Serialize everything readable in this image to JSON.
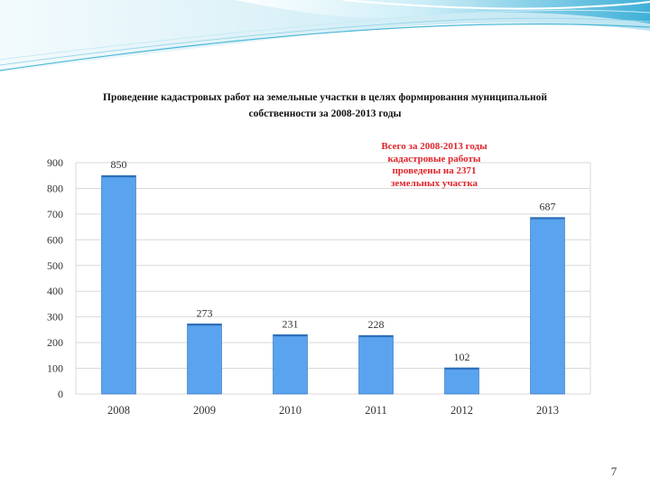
{
  "slide": {
    "title_lines": [
      "Проведение кадастровых работ на земельные участки в целях формирования муниципальной",
      "собственности за 2008-2013 годы"
    ],
    "note_lines": [
      "Всего за 2008-2013 годы",
      "кадастровые работы",
      "проведены на 2371",
      "земельных участка"
    ],
    "page_number": "7",
    "colors": {
      "bar": "#5aa3ef",
      "bar_edge": "#2f6fb7",
      "note": "#e0242a",
      "wave": "#4cb7d8"
    }
  },
  "chart_data": {
    "type": "bar",
    "categories": [
      "2008",
      "2009",
      "2010",
      "2011",
      "2012",
      "2013"
    ],
    "values": [
      850,
      273,
      231,
      228,
      102,
      687
    ],
    "data_labels": [
      "850",
      "273",
      "231",
      "228",
      "102",
      "687"
    ],
    "title": "Проведение кадастровых работ на земельные участки в целях формирования муниципальной собственности за 2008-2013 годы",
    "xlabel": "",
    "ylabel": "",
    "ylim": [
      0,
      900
    ],
    "yticks": [
      0,
      100,
      200,
      300,
      400,
      500,
      600,
      700,
      800,
      900
    ],
    "grid": true,
    "legend": "none"
  }
}
